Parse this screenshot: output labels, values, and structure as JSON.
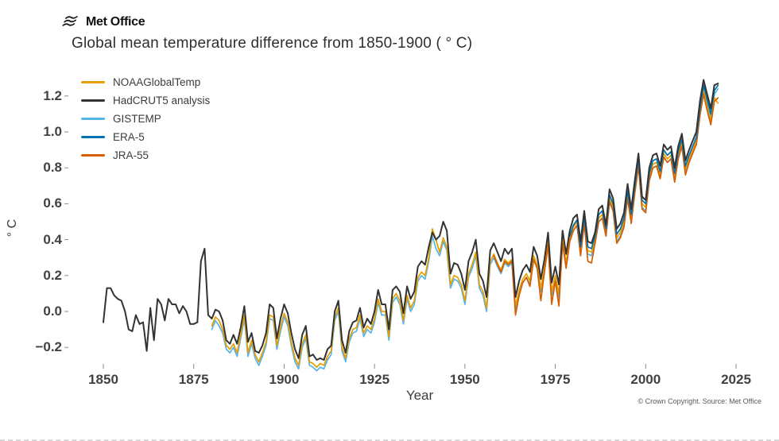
{
  "header": {
    "brand": "Met Office",
    "title": "Global mean temperature difference from 1850-1900 ( ° C)"
  },
  "footer": {
    "copyright": "© Crown Copyright. Source: Met Office"
  },
  "chart_data": {
    "type": "line",
    "title": "Global mean temperature difference from 1850-1900 ( ° C)",
    "xlabel": "Year",
    "ylabel": "° C",
    "grid": false,
    "legend_position": "upper left",
    "baseline": "1850-1900",
    "xlim": [
      1845,
      2030
    ],
    "ylim": [
      -0.33,
      1.35
    ],
    "x_ticks": [
      1850,
      1875,
      1900,
      1925,
      1950,
      1975,
      2000,
      2025
    ],
    "y_ticks": [
      {
        "label": "1.2",
        "value": 1.2
      },
      {
        "label": "1.0",
        "value": 1.0
      },
      {
        "label": "0.8",
        "value": 0.8
      },
      {
        "label": "0.6",
        "value": 0.6
      },
      {
        "label": "0.4",
        "value": 0.4
      },
      {
        "label": "0.2",
        "value": 0.2
      },
      {
        "label": "0.0",
        "value": 0.0
      },
      {
        "label": "−0.2",
        "value": -0.2
      }
    ],
    "series": [
      {
        "name": "NOAAGlobalTemp",
        "color": "#E69F00",
        "start_year": 1880,
        "end_year": 2020,
        "values": [
          -0.08,
          -0.03,
          -0.05,
          -0.1,
          -0.19,
          -0.21,
          -0.18,
          -0.23,
          -0.13,
          -0.02,
          -0.23,
          -0.16,
          -0.24,
          -0.28,
          -0.23,
          -0.17,
          -0.02,
          -0.03,
          -0.19,
          -0.09,
          -0.01,
          -0.06,
          -0.17,
          -0.26,
          -0.3,
          -0.18,
          -0.13,
          -0.28,
          -0.29,
          -0.31,
          -0.29,
          -0.3,
          -0.25,
          -0.22,
          -0.03,
          0.02,
          -0.2,
          -0.26,
          -0.15,
          -0.1,
          -0.09,
          -0.02,
          -0.12,
          -0.08,
          -0.1,
          -0.04,
          0.07,
          0.0,
          0.0,
          -0.14,
          0.07,
          0.1,
          0.06,
          -0.05,
          0.09,
          0.02,
          0.06,
          0.19,
          0.22,
          0.2,
          0.3,
          0.46,
          0.4,
          0.33,
          0.41,
          0.36,
          0.15,
          0.2,
          0.19,
          0.15,
          0.06,
          0.21,
          0.26,
          0.33,
          0.15,
          0.11,
          0.02,
          0.28,
          0.32,
          0.27,
          0.23,
          0.29,
          0.27,
          0.29,
          0.03,
          0.12,
          0.18,
          0.21,
          0.17,
          0.31,
          0.26,
          0.13,
          0.24,
          0.39,
          0.11,
          0.2,
          0.1,
          0.4,
          0.27,
          0.41,
          0.47,
          0.5,
          0.34,
          0.51,
          0.34,
          0.33,
          0.4,
          0.52,
          0.54,
          0.44,
          0.63,
          0.58,
          0.41,
          0.44,
          0.5,
          0.65,
          0.52,
          0.68,
          0.83,
          0.6,
          0.58,
          0.75,
          0.82,
          0.83,
          0.76,
          0.88,
          0.85,
          0.87,
          0.75,
          0.87,
          0.94,
          0.79,
          0.85,
          0.9,
          0.95,
          1.11,
          1.23,
          1.14,
          1.06,
          1.19,
          1.16
        ]
      },
      {
        "name": "HadCRUT5 analysis",
        "color": "#333333",
        "start_year": 1850,
        "end_year": 2020,
        "values": [
          -0.06,
          0.13,
          0.13,
          0.09,
          0.07,
          0.06,
          0.0,
          -0.1,
          -0.11,
          -0.02,
          -0.07,
          -0.06,
          -0.22,
          0.02,
          -0.16,
          0.07,
          0.04,
          -0.05,
          0.07,
          0.04,
          0.04,
          -0.01,
          0.03,
          0.0,
          -0.07,
          -0.07,
          -0.06,
          0.28,
          0.35,
          -0.02,
          -0.04,
          0.01,
          0.0,
          -0.05,
          -0.16,
          -0.18,
          -0.13,
          -0.18,
          -0.09,
          0.03,
          -0.17,
          -0.12,
          -0.22,
          -0.23,
          -0.19,
          -0.12,
          0.04,
          0.02,
          -0.15,
          -0.04,
          0.04,
          -0.01,
          -0.12,
          -0.21,
          -0.26,
          -0.13,
          -0.08,
          -0.25,
          -0.24,
          -0.27,
          -0.26,
          -0.27,
          -0.21,
          -0.19,
          0.0,
          0.06,
          -0.16,
          -0.23,
          -0.11,
          -0.06,
          -0.05,
          0.02,
          -0.09,
          -0.04,
          -0.07,
          0.0,
          0.12,
          0.04,
          0.04,
          -0.1,
          0.12,
          0.14,
          0.11,
          -0.01,
          0.14,
          0.07,
          0.11,
          0.25,
          0.28,
          0.26,
          0.36,
          0.44,
          0.4,
          0.42,
          0.5,
          0.45,
          0.21,
          0.27,
          0.26,
          0.21,
          0.12,
          0.28,
          0.33,
          0.4,
          0.21,
          0.17,
          0.08,
          0.34,
          0.38,
          0.33,
          0.28,
          0.35,
          0.32,
          0.35,
          0.08,
          0.17,
          0.23,
          0.26,
          0.22,
          0.36,
          0.31,
          0.18,
          0.29,
          0.44,
          0.16,
          0.25,
          0.15,
          0.45,
          0.32,
          0.45,
          0.52,
          0.54,
          0.39,
          0.56,
          0.39,
          0.38,
          0.44,
          0.57,
          0.59,
          0.48,
          0.68,
          0.63,
          0.46,
          0.49,
          0.55,
          0.71,
          0.57,
          0.73,
          0.88,
          0.64,
          0.62,
          0.8,
          0.87,
          0.88,
          0.81,
          0.93,
          0.9,
          0.92,
          0.8,
          0.92,
          0.99,
          0.84,
          0.9,
          0.95,
          1.0,
          1.17,
          1.29,
          1.21,
          1.13,
          1.26,
          1.27
        ]
      },
      {
        "name": "GISTEMP",
        "color": "#56B4E9",
        "start_year": 1880,
        "end_year": 2020,
        "values": [
          -0.1,
          -0.05,
          -0.08,
          -0.12,
          -0.21,
          -0.23,
          -0.2,
          -0.25,
          -0.15,
          -0.04,
          -0.25,
          -0.18,
          -0.26,
          -0.3,
          -0.25,
          -0.19,
          -0.04,
          -0.05,
          -0.21,
          -0.11,
          -0.03,
          -0.08,
          -0.19,
          -0.28,
          -0.32,
          -0.2,
          -0.15,
          -0.3,
          -0.31,
          -0.33,
          -0.31,
          -0.32,
          -0.27,
          -0.24,
          -0.05,
          0.0,
          -0.22,
          -0.28,
          -0.17,
          -0.12,
          -0.11,
          -0.04,
          -0.14,
          -0.1,
          -0.12,
          -0.06,
          0.05,
          -0.02,
          -0.02,
          -0.16,
          0.05,
          0.08,
          0.04,
          -0.07,
          0.07,
          0.0,
          0.04,
          0.17,
          0.2,
          0.18,
          0.28,
          0.42,
          0.35,
          0.31,
          0.39,
          0.34,
          0.13,
          0.18,
          0.17,
          0.13,
          0.04,
          0.19,
          0.24,
          0.31,
          0.13,
          0.09,
          0.0,
          0.26,
          0.3,
          0.25,
          0.21,
          0.27,
          0.25,
          0.27,
          0.01,
          0.1,
          0.16,
          0.19,
          0.15,
          0.29,
          0.24,
          0.11,
          0.22,
          0.37,
          0.09,
          0.18,
          0.08,
          0.38,
          0.25,
          0.39,
          0.45,
          0.48,
          0.32,
          0.49,
          0.32,
          0.31,
          0.38,
          0.5,
          0.52,
          0.42,
          0.61,
          0.56,
          0.39,
          0.42,
          0.48,
          0.63,
          0.5,
          0.66,
          0.81,
          0.58,
          0.56,
          0.73,
          0.8,
          0.81,
          0.74,
          0.86,
          0.83,
          0.85,
          0.73,
          0.85,
          0.92,
          0.77,
          0.83,
          0.88,
          0.93,
          1.09,
          1.24,
          1.16,
          1.08,
          1.21,
          1.24
        ]
      },
      {
        "name": "ERA-5",
        "color": "#0072B2",
        "start_year": 1979,
        "end_year": 2020,
        "values": [
          0.42,
          0.48,
          0.51,
          0.36,
          0.53,
          0.36,
          0.35,
          0.42,
          0.54,
          0.56,
          0.46,
          0.65,
          0.6,
          0.43,
          0.46,
          0.52,
          0.67,
          0.54,
          0.7,
          0.85,
          0.62,
          0.6,
          0.77,
          0.84,
          0.85,
          0.78,
          0.9,
          0.87,
          0.89,
          0.77,
          0.89,
          0.96,
          0.81,
          0.87,
          0.92,
          0.97,
          1.13,
          1.26,
          1.18,
          1.1,
          1.23,
          1.26
        ]
      },
      {
        "name": "JRA-55",
        "color": "#D55E00",
        "start_year": 1958,
        "end_year": 2020,
        "values": [
          0.31,
          0.26,
          0.22,
          0.28,
          0.26,
          0.28,
          -0.02,
          0.09,
          0.16,
          0.19,
          0.14,
          0.29,
          0.24,
          0.06,
          0.22,
          0.37,
          0.04,
          0.17,
          0.03,
          0.38,
          0.24,
          0.39,
          0.45,
          0.48,
          0.31,
          0.49,
          0.28,
          0.27,
          0.38,
          0.5,
          0.52,
          0.42,
          0.61,
          0.56,
          0.38,
          0.41,
          0.47,
          0.63,
          0.49,
          0.66,
          0.81,
          0.57,
          0.55,
          0.73,
          0.8,
          0.81,
          0.74,
          0.86,
          0.83,
          0.85,
          0.72,
          0.85,
          0.92,
          0.76,
          0.83,
          0.88,
          0.93,
          1.09,
          1.21,
          1.12,
          1.04,
          1.17,
          1.19
        ]
      }
    ]
  }
}
